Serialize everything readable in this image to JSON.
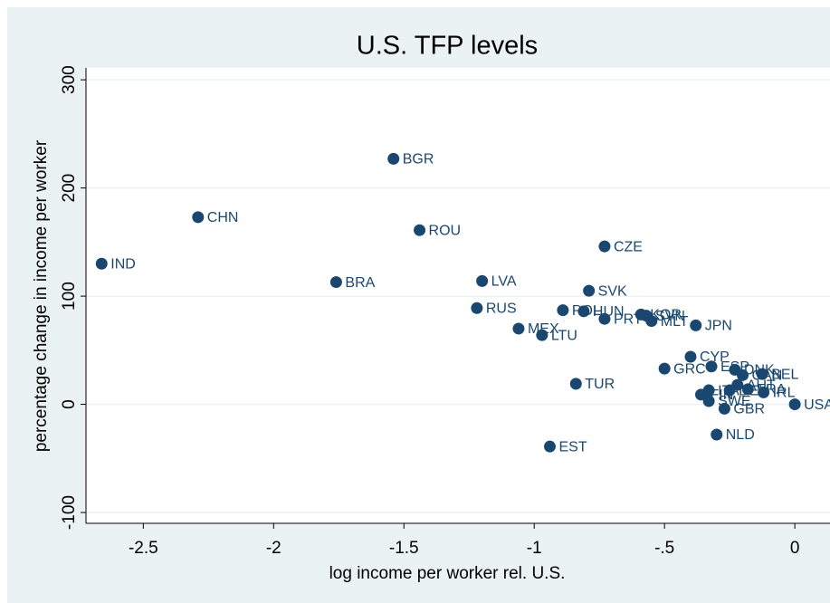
{
  "chart_data": {
    "type": "scatter",
    "title": "U.S. TFP levels",
    "xlabel": "log income per worker rel. U.S.",
    "ylabel": "percentage change in income per worker",
    "color": "#1a476f",
    "grid": true,
    "xlim": [
      -2.72,
      0.135
    ],
    "ylim": [
      -110,
      311
    ],
    "xticks": [
      -2.5,
      -2,
      -1.5,
      -1,
      {
        "value": -0.5,
        "label": "-.5"
      },
      0
    ],
    "yticks": [
      300,
      200,
      100,
      0,
      -100
    ],
    "point_labels": [
      "IND",
      "CHN",
      "BGR",
      "ROU",
      "BRA",
      "LVA",
      "RUS",
      "MEX",
      "LTU",
      "POL",
      "HUN",
      "CZE",
      "SVK",
      "PRT",
      "SVN",
      "KOR",
      "MLT",
      "JPN",
      "TUR",
      "EST",
      "GRC",
      "CYP",
      "ESP",
      "DNK",
      "CAN",
      "BEL",
      "AUT",
      "DEU",
      "FRA",
      "IRL",
      "ITA",
      "SWE",
      "FIN",
      "GBR",
      "NLD",
      "USA"
    ],
    "x": [
      -2.66,
      -2.29,
      -1.54,
      -1.44,
      -1.76,
      -1.2,
      -1.22,
      -1.06,
      -0.97,
      -0.89,
      -0.81,
      -0.73,
      -0.79,
      -0.73,
      -0.57,
      -0.59,
      -0.55,
      -0.38,
      -0.84,
      -0.94,
      -0.5,
      -0.4,
      -0.32,
      -0.23,
      -0.2,
      -0.125,
      -0.22,
      -0.25,
      -0.18,
      -0.12,
      -0.33,
      -0.33,
      -0.36,
      -0.27,
      -0.3,
      0
    ],
    "values": [
      130,
      173,
      227,
      161,
      113,
      114,
      89,
      70,
      64,
      87,
      86,
      146,
      105,
      79,
      82,
      83,
      77,
      73,
      19,
      -39,
      33,
      44,
      35,
      32,
      27,
      28,
      18,
      13,
      14,
      11,
      13,
      3,
      9,
      -4,
      -28,
      0
    ]
  }
}
